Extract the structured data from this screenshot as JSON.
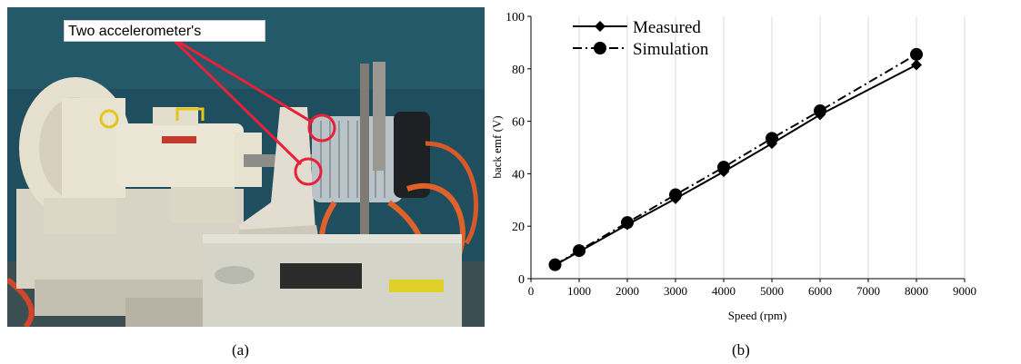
{
  "panels": {
    "a": {
      "caption": "(a)",
      "annotation": "Two accelerometer's"
    },
    "b": {
      "caption": "(b)"
    }
  },
  "colors": {
    "wall": "#1f4f5e",
    "annotation": "#e8213a",
    "cable": "#e0622a",
    "machine": "#ece6d6"
  },
  "chart_data": {
    "type": "line",
    "xlabel": "Speed (rpm)",
    "ylabel": "back emf (V)",
    "xlim": [
      0,
      9000
    ],
    "ylim": [
      0,
      100
    ],
    "xticks": [
      0,
      1000,
      2000,
      3000,
      4000,
      5000,
      6000,
      7000,
      8000,
      9000
    ],
    "yticks": [
      0,
      20,
      40,
      60,
      80,
      100
    ],
    "grid": "vertical",
    "legend_position": "top-left",
    "series": [
      {
        "name": "Measured",
        "line_style": "solid",
        "marker": "diamond",
        "x": [
          500,
          1000,
          2000,
          3000,
          4000,
          5000,
          6000,
          8000
        ],
        "y": [
          5.2,
          10.3,
          20.6,
          30.5,
          40.8,
          51.5,
          62.5,
          81.5
        ]
      },
      {
        "name": "Simulation",
        "line_style": "dashdot",
        "marker": "circle",
        "x": [
          500,
          1000,
          2000,
          3000,
          4000,
          5000,
          6000,
          8000
        ],
        "y": [
          5.3,
          10.7,
          21.4,
          32.0,
          42.5,
          53.5,
          64.0,
          85.5
        ]
      }
    ]
  }
}
